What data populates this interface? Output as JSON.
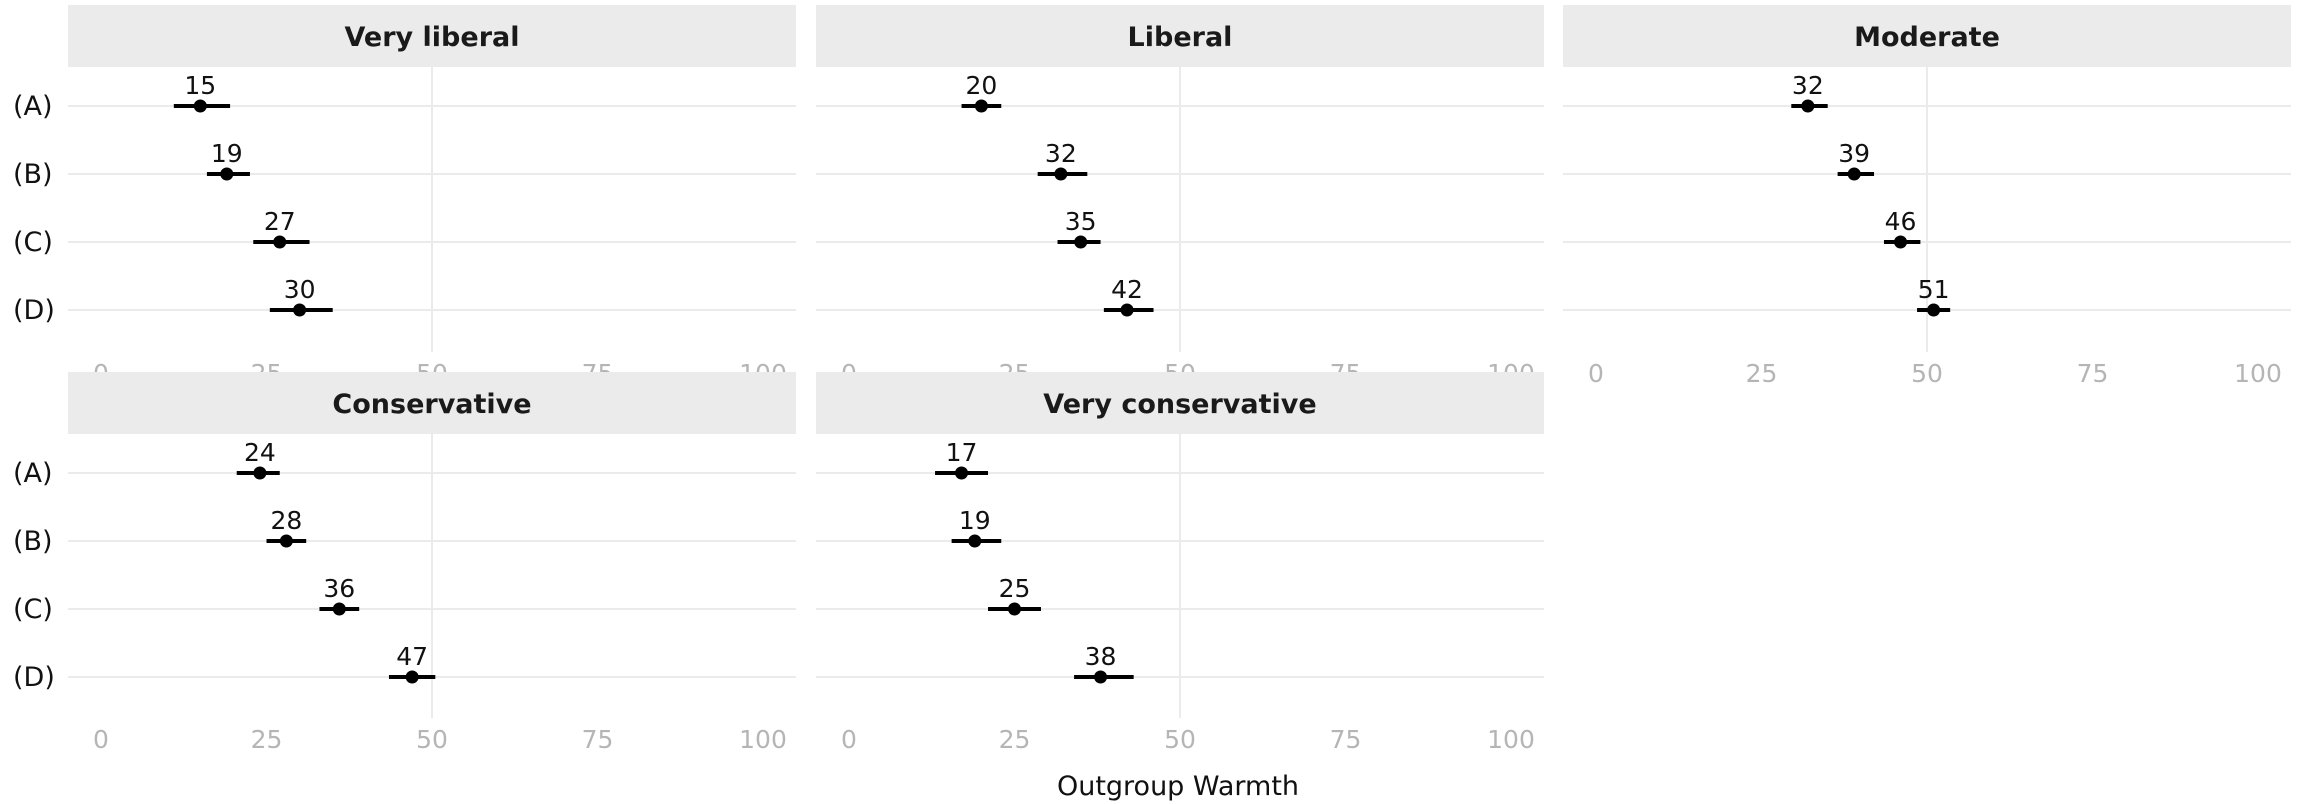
{
  "chart_data": {
    "type": "dot-errorbar",
    "layout": "facet_wrap",
    "xlabel": "Outgroup Warmth",
    "xlim": [
      0,
      100
    ],
    "x_ticks": [
      0,
      25,
      50,
      75,
      100
    ],
    "x_tick_labels": [
      "0",
      "25",
      "50",
      "75",
      "100"
    ],
    "categories": [
      "(A)",
      "(B)",
      "(C)",
      "(D)"
    ],
    "grid": true,
    "colors": {
      "point": "#000000",
      "strip": "#ebebeb",
      "grid": "#ebebeb",
      "tick": "#b5b5b5"
    },
    "panels": [
      {
        "title": "Very liberal",
        "values": [
          15,
          19,
          27,
          30
        ],
        "lower": [
          11,
          16,
          23,
          25.5
        ],
        "upper": [
          19.5,
          22.5,
          31.5,
          35
        ]
      },
      {
        "title": "Liberal",
        "values": [
          20,
          32,
          35,
          42
        ],
        "lower": [
          17,
          28.5,
          31.5,
          38.5
        ],
        "upper": [
          23,
          36,
          38,
          46
        ]
      },
      {
        "title": "Moderate",
        "values": [
          32,
          39,
          46,
          51
        ],
        "lower": [
          29.5,
          36.5,
          43.5,
          48.5
        ],
        "upper": [
          35,
          42,
          49,
          53.5
        ]
      },
      {
        "title": "Conservative",
        "values": [
          24,
          28,
          36,
          47
        ],
        "lower": [
          20.5,
          25,
          33,
          43.5
        ],
        "upper": [
          27,
          31,
          39,
          50.5
        ]
      },
      {
        "title": "Very conservative",
        "values": [
          17,
          19,
          25,
          38
        ],
        "lower": [
          13,
          15.5,
          21,
          34
        ],
        "upper": [
          21,
          23,
          29,
          43
        ]
      }
    ]
  }
}
